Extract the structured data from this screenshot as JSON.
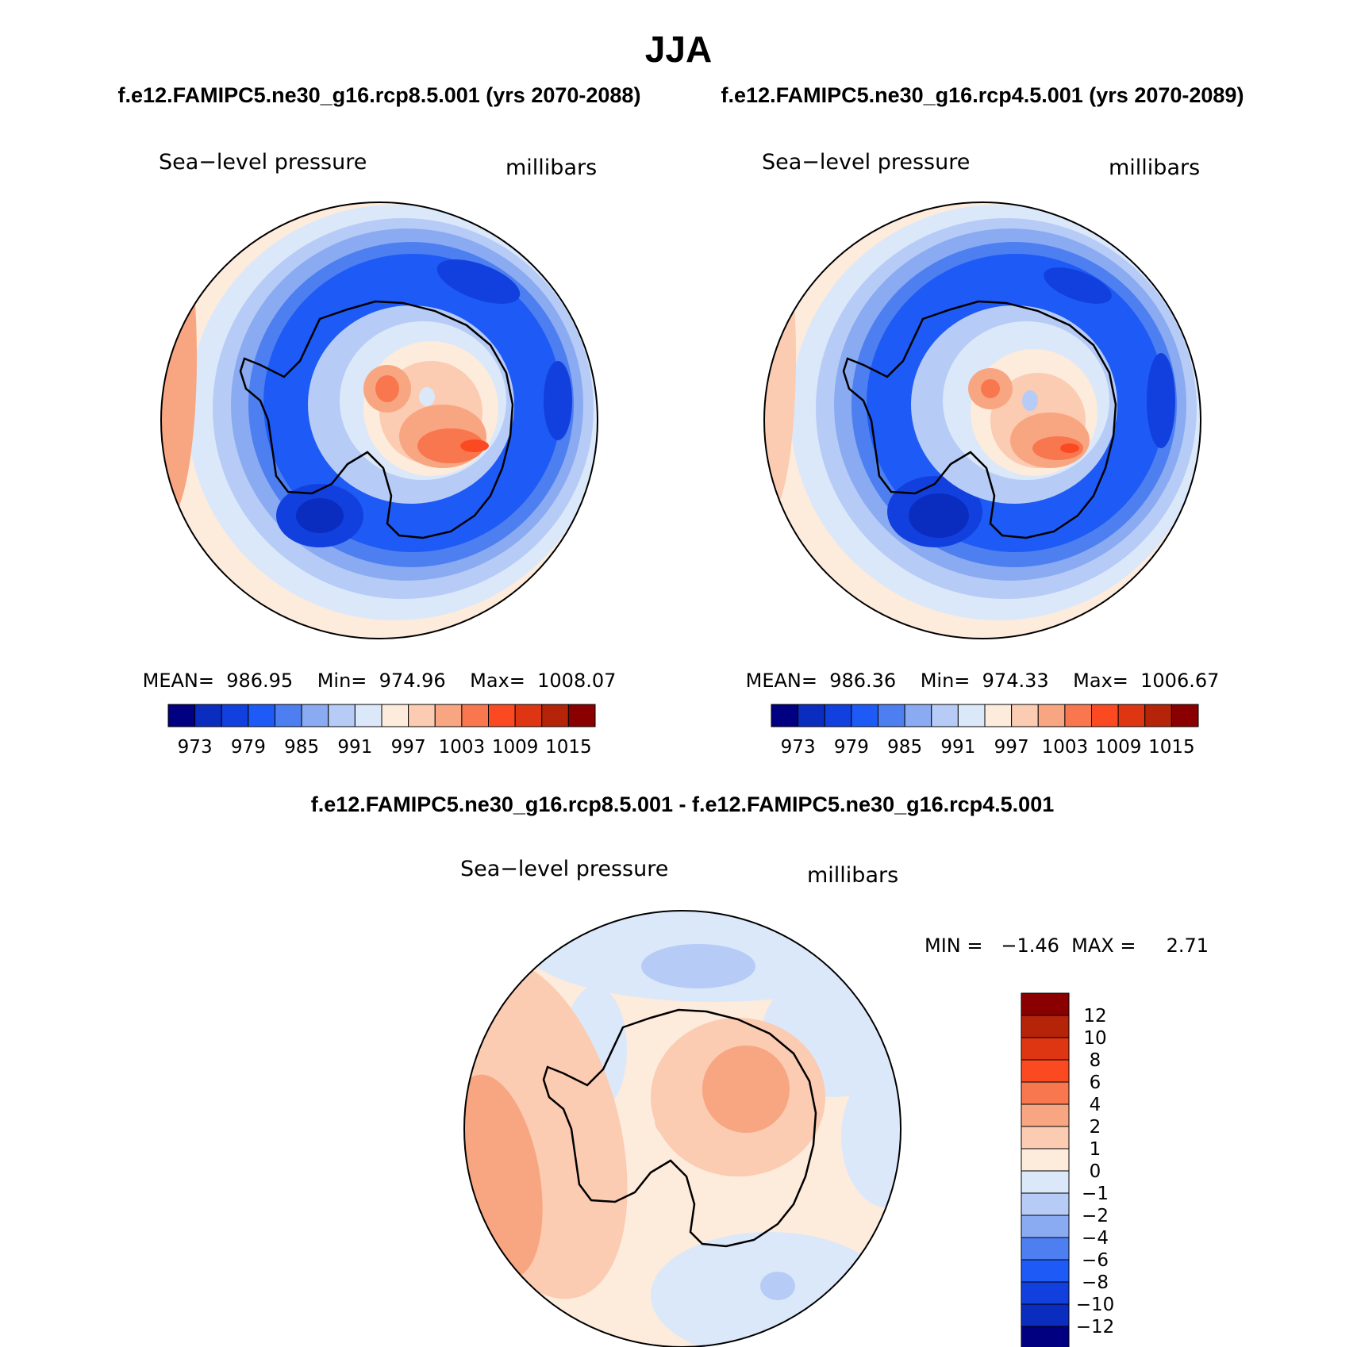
{
  "title": "JJA",
  "left_panel": {
    "case_header": "f.e12.FAMIPC5.ne30_g16.rcp8.5.001 (yrs 2070-2088)",
    "variable": "Sea−level pressure",
    "units": "millibars",
    "stats": "MEAN=  986.95    Min=  974.96    Max=  1008.07"
  },
  "right_panel": {
    "case_header": "f.e12.FAMIPC5.ne30_g16.rcp4.5.001 (yrs 2070-2089)",
    "variable": "Sea−level pressure",
    "units": "millibars",
    "stats": "MEAN=  986.36    Min=  974.33    Max=  1006.67"
  },
  "diff_panel": {
    "header": "f.e12.FAMIPC5.ne30_g16.rcp8.5.001 - f.e12.FAMIPC5.ne30_g16.rcp4.5.001",
    "variable": "Sea−level pressure",
    "units": "millibars",
    "minmax": "MIN =   −1.46  MAX =     2.71"
  },
  "colorbar_abs": {
    "colors": [
      "#000080",
      "#0a2dbf",
      "#1240de",
      "#1e5af5",
      "#4d7ff0",
      "#8aaaf2",
      "#b6cbf6",
      "#dbe8fa",
      "#fdebdc",
      "#fbcbb2",
      "#f8a681",
      "#f9774f",
      "#fb4a22",
      "#de3613",
      "#b52309",
      "#8a0000"
    ],
    "labels": [
      "973",
      "979",
      "985",
      "991",
      "997",
      "1003",
      "1009",
      "1015"
    ]
  },
  "colorbar_diff": {
    "colors": [
      "#8a0000",
      "#b52309",
      "#de3613",
      "#fb4a22",
      "#f9774f",
      "#f8a681",
      "#fbcbb2",
      "#fdebdc",
      "#dbe8fa",
      "#b6cbf6",
      "#8aaaf2",
      "#4d7ff0",
      "#1e5af5",
      "#1240de",
      "#0a2dbf",
      "#000080"
    ],
    "labels": [
      "12",
      "10",
      "8",
      "6",
      "4",
      "2",
      "1",
      "0",
      "−1",
      "−2",
      "−4",
      "−6",
      "−8",
      "−10",
      "−12"
    ]
  }
}
